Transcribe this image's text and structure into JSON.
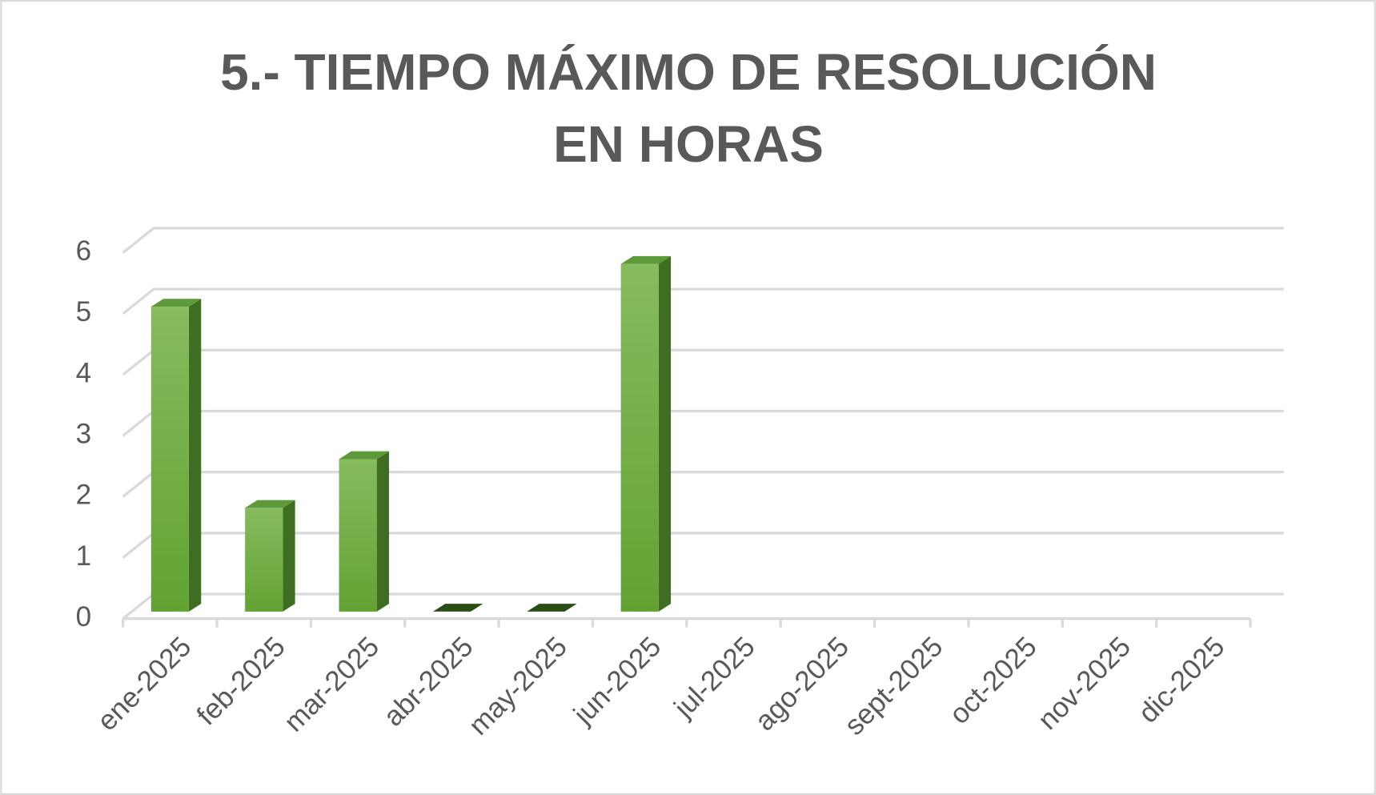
{
  "chart_data": {
    "type": "bar3d",
    "title": "5.- TIEMPO MÁXIMO DE RESOLUCIÓN EN HORAS",
    "categories": [
      "ene-2025",
      "feb-2025",
      "mar-2025",
      "abr-2025",
      "may-2025",
      "jun-2025",
      "jul-2025",
      "ago-2025",
      "sept-2025",
      "oct-2025",
      "nov-2025",
      "dic-2025"
    ],
    "values": [
      5,
      1.7,
      2.5,
      0,
      0,
      5.7,
      null,
      null,
      null,
      null,
      null,
      null
    ],
    "color": "#70ad47",
    "ylim": [
      0,
      6
    ],
    "yticks": [
      0,
      1,
      2,
      3,
      4,
      5,
      6
    ],
    "grid": true
  }
}
